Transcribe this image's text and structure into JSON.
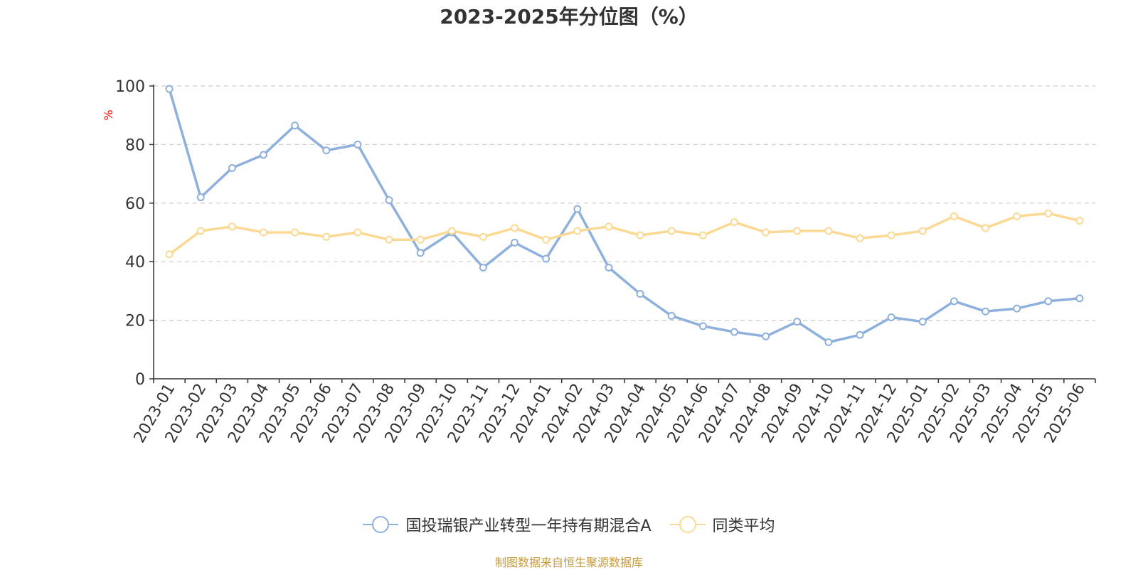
{
  "chart_data": {
    "type": "line",
    "title": "2023-2025年分位图（%）",
    "ylabel": "%",
    "xlabel": "",
    "ylim": [
      0,
      100
    ],
    "yticks": [
      0,
      20,
      40,
      60,
      80,
      100
    ],
    "grid": true,
    "legend_position": "bottom",
    "categories": [
      "2023-01",
      "2023-02",
      "2023-03",
      "2023-04",
      "2023-05",
      "2023-06",
      "2023-07",
      "2023-08",
      "2023-09",
      "2023-10",
      "2023-11",
      "2023-12",
      "2024-01",
      "2024-02",
      "2024-03",
      "2024-04",
      "2024-05",
      "2024-06",
      "2024-07",
      "2024-08",
      "2024-09",
      "2024-10",
      "2024-11",
      "2024-12",
      "2025-01",
      "2025-02",
      "2025-03",
      "2025-04",
      "2025-05",
      "2025-06"
    ],
    "series": [
      {
        "name": "国投瑞银产业转型一年持有期混合A",
        "color": "#8eb0dc",
        "values": [
          99,
          62,
          72,
          76.5,
          86.5,
          78,
          80,
          61,
          43,
          50,
          38,
          46.5,
          41,
          58,
          38,
          29,
          21.5,
          18,
          16,
          14.5,
          19.5,
          12.5,
          15,
          21,
          19.5,
          26.5,
          23,
          24,
          26.5,
          27.5
        ]
      },
      {
        "name": "同类平均",
        "color": "#fbd992",
        "values": [
          42.5,
          50.5,
          52,
          50,
          50,
          48.5,
          50,
          47.5,
          47.5,
          50.5,
          48.5,
          51.5,
          47.5,
          50.5,
          52,
          49,
          50.5,
          49,
          53.5,
          50,
          50.5,
          50.5,
          48,
          49,
          50.5,
          55.5,
          51.5,
          55.5,
          56.5,
          54
        ]
      }
    ]
  },
  "footer": {
    "source": "制图数据来自恒生聚源数据库"
  }
}
